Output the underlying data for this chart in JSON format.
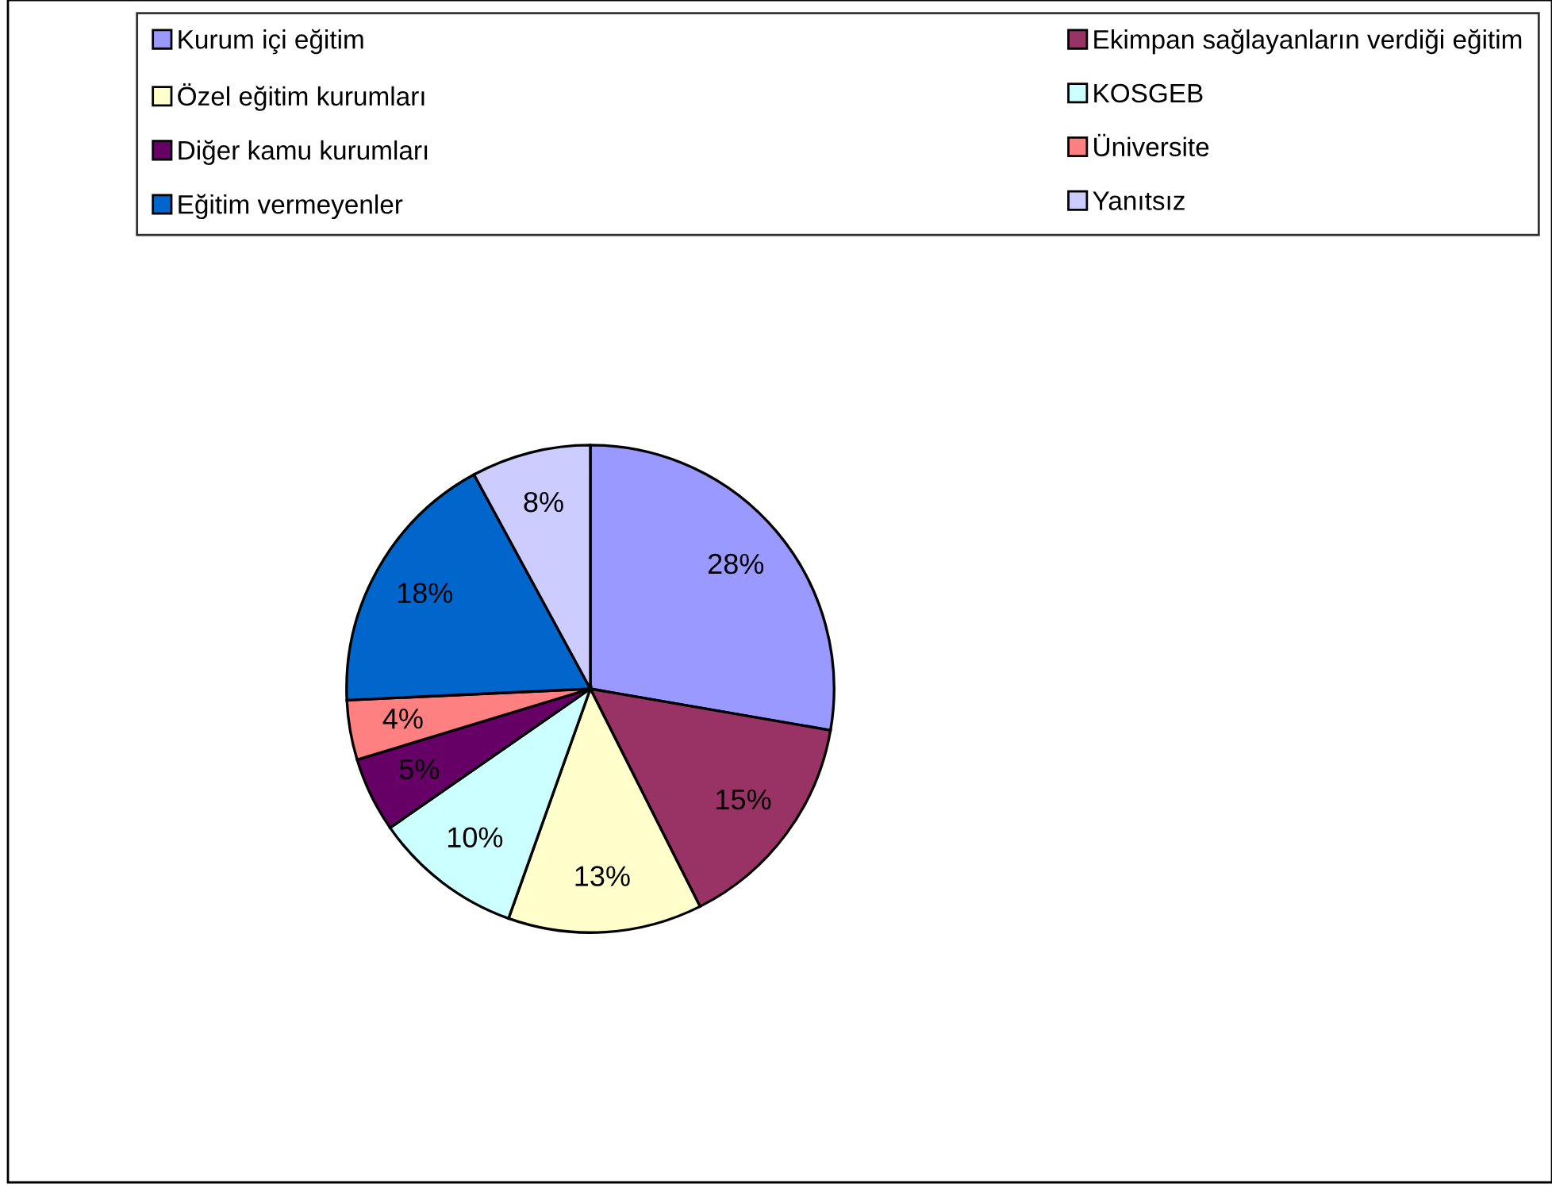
{
  "chart_data": {
    "type": "pie",
    "categories": [
      "Kurum içi eğitim",
      "Ekimpan sağlayanların verdiği eğitim",
      "Özel eğitim kurumları",
      "KOSGEB",
      "Diğer kamu kurumları",
      "Üniversite",
      "Eğitim vermeyenler",
      "Yanıtsız"
    ],
    "values": [
      28,
      15,
      13,
      10,
      5,
      4,
      18,
      8
    ],
    "colors": [
      "#9999ff",
      "#993366",
      "#ffffcc",
      "#ccffff",
      "#660066",
      "#ff8080",
      "#0066cc",
      "#ccccff"
    ],
    "value_labels": [
      "28%",
      "15%",
      "13%",
      "10%",
      "5%",
      "4%",
      "18%",
      "8%"
    ],
    "legend": "top"
  }
}
